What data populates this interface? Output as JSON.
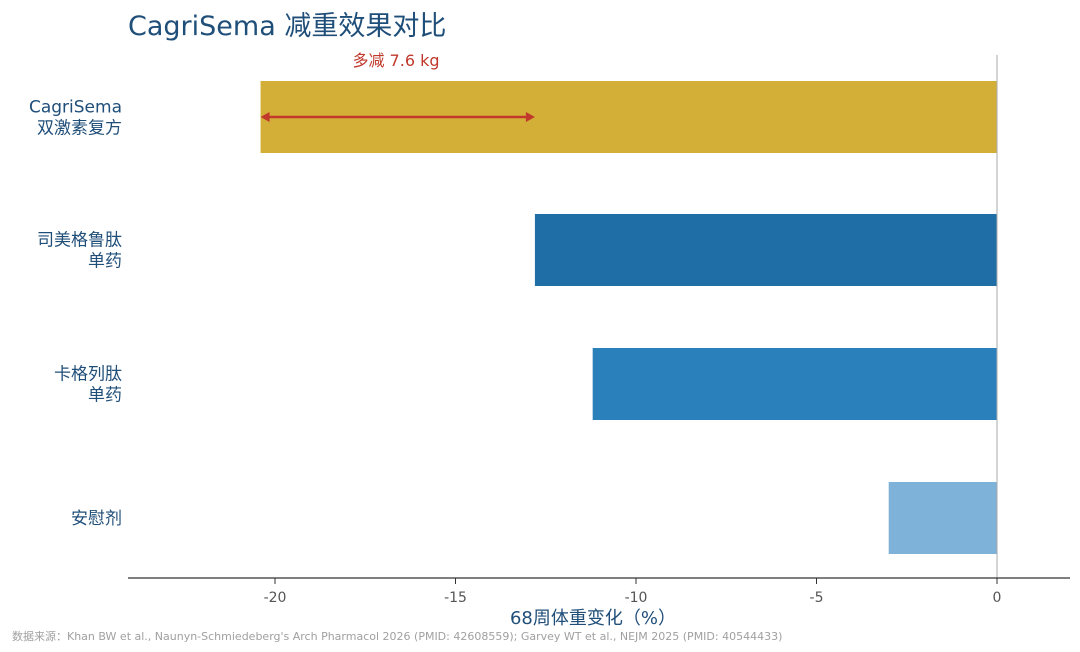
{
  "chart_data": {
    "type": "bar",
    "orientation": "horizontal",
    "title": "CagriSema 减重效果对比",
    "xlabel": "68周体重变化（%）",
    "ylabel": "",
    "xlim": [
      -24,
      2
    ],
    "xticks": [
      -20,
      -15,
      -10,
      -5,
      0
    ],
    "categories": [
      [
        "CagriSema",
        "双激素复方"
      ],
      [
        "司美格鲁肽",
        "单药"
      ],
      [
        "卡格列肽",
        "单药"
      ],
      [
        "安慰剂"
      ]
    ],
    "values": [
      -20.4,
      -12.8,
      -11.2,
      -3.0
    ],
    "colors": [
      "#d4af37",
      "#1f6ea6",
      "#2a80ba",
      "#7fb2d8"
    ],
    "annotation": {
      "text": "多减 7.6 kg",
      "from": -20.4,
      "to": -12.8,
      "color": "#c0392b"
    },
    "grid": false,
    "legend": "none"
  },
  "source": "数据来源：Khan BW et al., Naunyn-Schmiedeberg's Arch Pharmacol 2026 (PMID: 42608559); Garvey WT et al., NEJM 2025 (PMID: 40544433)"
}
